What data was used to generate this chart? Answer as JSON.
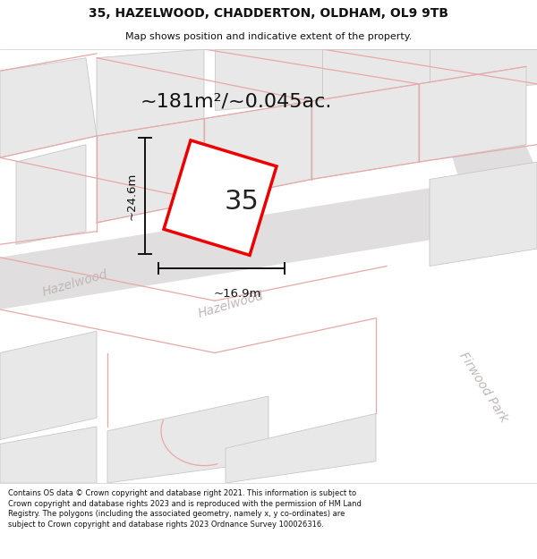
{
  "title_line1": "35, HAZELWOOD, CHADDERTON, OLDHAM, OL9 9TB",
  "title_line2": "Map shows position and indicative extent of the property.",
  "area_label": "~181m²/~0.045ac.",
  "house_number": "35",
  "dim_height": "~24.6m",
  "dim_width": "~16.9m",
  "footer_text": "Contains OS data © Crown copyright and database right 2021. This information is subject to Crown copyright and database rights 2023 and is reproduced with the permission of HM Land Registry. The polygons (including the associated geometry, namely x, y co-ordinates) are subject to Crown copyright and database rights 2023 Ordnance Survey 100026316.",
  "bg_color": "#ffffff",
  "map_bg": "#ffffff",
  "building_color": "#e8e8e8",
  "building_edge": "#c8c8c8",
  "plot_edge_color": "#ee0000",
  "plot_fill": "#ffffff",
  "plot_alpha": 1.0,
  "road_band_color": "#e0dede",
  "street_label_color": "#c0b8b8",
  "pink_line_color": "#e8a8a8",
  "dim_line_color": "#111111",
  "area_label_fontsize": 16,
  "house_num_fontsize": 22,
  "street_label_fontsize": 10
}
